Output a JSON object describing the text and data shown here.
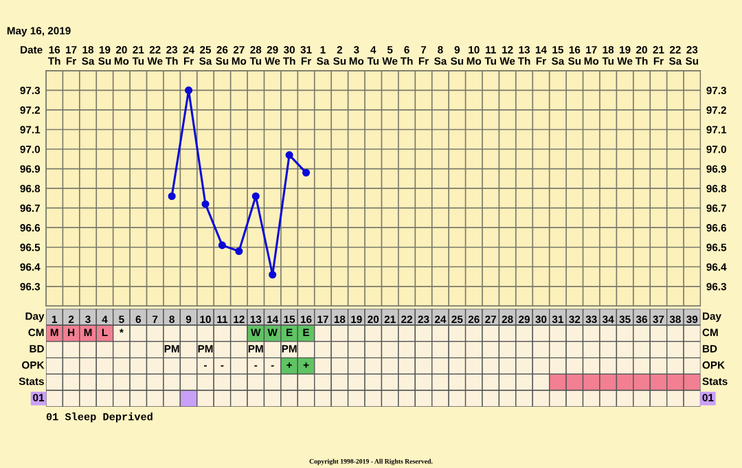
{
  "chart_data": [
    {
      "type": "line",
      "title": "May 16, 2019",
      "xlabel": "Date",
      "categories": [
        "16\nTh",
        "17\nFr",
        "18\nSa",
        "19\nSu",
        "20\nMo",
        "21\nTu",
        "22\nWe",
        "23\nTh",
        "24\nFr",
        "25\nSa",
        "26\nSu",
        "27\nMo",
        "28\nTu",
        "29\nWe",
        "30\nTh",
        "31\nFr",
        "1\nSa",
        "2\nSu",
        "3\nMo",
        "4\nTu",
        "5\nWe",
        "6\nTh",
        "7\nFr",
        "8\nSa",
        "9\nSu",
        "10\nMo",
        "11\nTu",
        "12\nWe",
        "13\nTh",
        "14\nFr",
        "15\nSa",
        "16\nSu",
        "17\nMo",
        "18\nTu",
        "19\nWe",
        "20\nTh",
        "21\nFr",
        "22\nSa",
        "23\nSu"
      ],
      "series": [
        {
          "color": "#0a0ad8",
          "values": [
            null,
            null,
            null,
            null,
            null,
            null,
            null,
            96.76,
            97.3,
            96.72,
            96.51,
            96.48,
            96.76,
            96.36,
            96.97,
            96.88,
            null,
            null,
            null,
            null,
            null,
            null,
            null,
            null,
            null,
            null,
            null,
            null,
            null,
            null,
            null,
            null,
            null,
            null,
            null,
            null,
            null,
            null,
            null
          ]
        }
      ],
      "ylim": [
        96.2,
        97.4
      ],
      "yticks": [
        {
          "value": 96.2,
          "label": null
        },
        96.3,
        96.4,
        96.5,
        96.6,
        96.7,
        96.8,
        96.9,
        {
          "value": 97.0,
          "label": "97.0"
        },
        97.1,
        97.2,
        97.3,
        {
          "value": 97.4,
          "label": null
        }
      ],
      "y2lim": [
        96.2,
        97.4
      ],
      "y2ticks": [
        {
          "value": 96.2,
          "label": null
        },
        96.3,
        96.4,
        96.5,
        96.6,
        96.7,
        96.8,
        96.9,
        {
          "value": 97.0,
          "label": "97.0"
        },
        97.1,
        97.2,
        97.3,
        {
          "value": 97.4,
          "label": null
        }
      ],
      "grid": true,
      "marker": "circle",
      "line_style": "solid",
      "legend": false
    },
    {
      "type": "heatmap",
      "xlabel": "Day",
      "categories": [
        "1",
        "2",
        "3",
        "4",
        "5",
        "6",
        "7",
        "8",
        "9",
        "10",
        "11",
        "12",
        "13",
        "14",
        "15",
        "16",
        "17",
        "18",
        "19",
        "20",
        "21",
        "22",
        "23",
        "24",
        "25",
        "26",
        "27",
        "28",
        "29",
        "30",
        "31",
        "32",
        "33",
        "34",
        "35",
        "36",
        "37",
        "38",
        "39"
      ],
      "y_categories": [
        "CM",
        "BD",
        "OPK",
        "Stats",
        "01"
      ],
      "y2_categories": [
        "CM",
        "BD",
        "OPK",
        "Stats",
        "01"
      ],
      "cells": [
        [
          null,
          null,
          null,
          null,
          null,
          null,
          null,
          null,
          null,
          null,
          null,
          null,
          null,
          null,
          null,
          null,
          null,
          null,
          null,
          null,
          null,
          null,
          null,
          null,
          null,
          null,
          null,
          null,
          null,
          null,
          null,
          null,
          null,
          null,
          null,
          null,
          null,
          null,
          null
        ],
        [
          null,
          null,
          null,
          null,
          null,
          null,
          null,
          null,
          null,
          null,
          null,
          null,
          null,
          null,
          null,
          null,
          null,
          null,
          null,
          null,
          null,
          null,
          null,
          null,
          null,
          null,
          null,
          null,
          null,
          null,
          null,
          null,
          null,
          null,
          null,
          null,
          null,
          null,
          null
        ],
        [
          null,
          null,
          null,
          null,
          null,
          null,
          null,
          null,
          null,
          null,
          null,
          null,
          null,
          null,
          null,
          null,
          null,
          null,
          null,
          null,
          null,
          null,
          null,
          null,
          null,
          null,
          null,
          null,
          null,
          null,
          null,
          null,
          null,
          null,
          null,
          null,
          null,
          null,
          null
        ],
        [
          null,
          null,
          null,
          null,
          null,
          null,
          null,
          null,
          null,
          null,
          null,
          null,
          null,
          null,
          null,
          null,
          null,
          null,
          null,
          null,
          null,
          null,
          null,
          null,
          null,
          null,
          null,
          null,
          null,
          null,
          null,
          null,
          null,
          null,
          null,
          null,
          null,
          null,
          null
        ],
        [
          null,
          null,
          null,
          null,
          null,
          null,
          null,
          null,
          null,
          null,
          null,
          null,
          null,
          null,
          null,
          null,
          null,
          null,
          null,
          null,
          null,
          null,
          null,
          null,
          null,
          null,
          null,
          null,
          null,
          null,
          null,
          null,
          null,
          null,
          null,
          null,
          null,
          null,
          null
        ]
      ],
      "cell_labels": [
        [
          "M",
          "H",
          "M",
          "L",
          "*",
          null,
          null,
          null,
          null,
          null,
          null,
          null,
          "W",
          "W",
          "E",
          "E",
          null,
          null,
          null,
          null,
          null,
          null,
          null,
          null,
          null,
          null,
          null,
          null,
          null,
          null,
          null,
          null,
          null,
          null,
          null,
          null,
          null,
          null,
          null
        ],
        [
          null,
          null,
          null,
          null,
          null,
          null,
          null,
          "PM",
          null,
          "PM",
          null,
          null,
          "PM",
          null,
          "PM",
          null,
          null,
          null,
          null,
          null,
          null,
          null,
          null,
          null,
          null,
          null,
          null,
          null,
          null,
          null,
          null,
          null,
          null,
          null,
          null,
          null,
          null,
          null,
          null
        ],
        [
          null,
          null,
          null,
          null,
          null,
          null,
          null,
          null,
          null,
          "-",
          "-",
          null,
          "-",
          "-",
          "+",
          "+",
          null,
          null,
          null,
          null,
          null,
          null,
          null,
          null,
          null,
          null,
          null,
          null,
          null,
          null,
          null,
          null,
          null,
          null,
          null,
          null,
          null,
          null,
          null
        ],
        [
          null,
          null,
          null,
          null,
          null,
          null,
          null,
          null,
          null,
          null,
          null,
          null,
          null,
          null,
          null,
          null,
          null,
          null,
          null,
          null,
          null,
          null,
          null,
          null,
          null,
          null,
          null,
          null,
          null,
          null,
          null,
          null,
          null,
          null,
          null,
          null,
          null,
          null,
          null
        ],
        [
          null,
          null,
          null,
          null,
          null,
          null,
          null,
          null,
          null,
          null,
          null,
          null,
          null,
          null,
          null,
          null,
          null,
          null,
          null,
          null,
          null,
          null,
          null,
          null,
          null,
          null,
          null,
          null,
          null,
          null,
          null,
          null,
          null,
          null,
          null,
          null,
          null,
          null,
          null
        ]
      ],
      "colors": [
        [
          "#f27f92",
          "#f27f92",
          "#f27f92",
          "#f27f92",
          null,
          null,
          null,
          null,
          null,
          null,
          null,
          null,
          "#5fc463",
          "#5fc463",
          "#5fc463",
          "#5fc463",
          null,
          null,
          null,
          null,
          null,
          null,
          null,
          null,
          null,
          null,
          null,
          null,
          null,
          null,
          null,
          null,
          null,
          null,
          null,
          null,
          null,
          null,
          null
        ],
        [
          null,
          null,
          null,
          null,
          null,
          null,
          null,
          null,
          null,
          null,
          null,
          null,
          null,
          null,
          null,
          null,
          null,
          null,
          null,
          null,
          null,
          null,
          null,
          null,
          null,
          null,
          null,
          null,
          null,
          null,
          null,
          null,
          null,
          null,
          null,
          null,
          null,
          null,
          null
        ],
        [
          null,
          null,
          null,
          null,
          null,
          null,
          null,
          null,
          null,
          null,
          null,
          null,
          null,
          null,
          "#5fc463",
          "#5fc463",
          null,
          null,
          null,
          null,
          null,
          null,
          null,
          null,
          null,
          null,
          null,
          null,
          null,
          null,
          null,
          null,
          null,
          null,
          null,
          null,
          null,
          null,
          null
        ],
        [
          null,
          null,
          null,
          null,
          null,
          null,
          null,
          null,
          null,
          null,
          null,
          null,
          null,
          null,
          null,
          null,
          null,
          null,
          null,
          null,
          null,
          null,
          null,
          null,
          null,
          null,
          null,
          null,
          null,
          null,
          "#f27f92",
          "#f27f92",
          "#f27f92",
          "#f27f92",
          "#f27f92",
          "#f27f92",
          "#f27f92",
          "#f27f92",
          "#f27f92"
        ],
        [
          null,
          null,
          null,
          null,
          null,
          null,
          null,
          null,
          "#c9a0f7",
          null,
          null,
          null,
          null,
          null,
          null,
          null,
          null,
          null,
          null,
          null,
          null,
          null,
          null,
          null,
          null,
          null,
          null,
          null,
          null,
          null,
          null,
          null,
          null,
          null,
          null,
          null,
          null,
          null,
          null
        ]
      ],
      "annotations": [
        "01 Sleep Deprived",
        "Copyright 1998-2019 - All Rights Reserved."
      ]
    }
  ]
}
